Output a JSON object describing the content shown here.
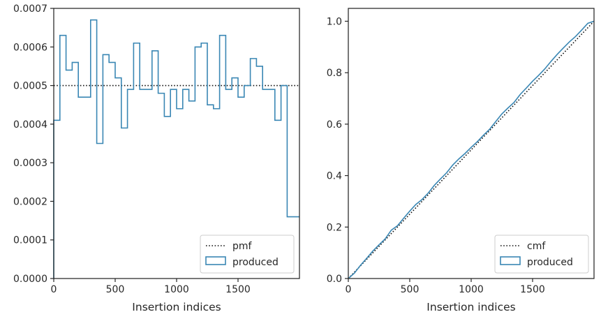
{
  "colors": {
    "produced": "#3a87b4",
    "reference": "#111111",
    "axes": "#262626",
    "legend_border": "#cccccc"
  },
  "chart_data": [
    {
      "type": "histogram-step",
      "title": "",
      "xlabel": "Insertion indices",
      "ylabel": "",
      "xlim": [
        0,
        2000
      ],
      "ylim": [
        0,
        0.0007
      ],
      "xticks": [
        0,
        500,
        1000,
        1500
      ],
      "xtick_labels": [
        "0",
        "500",
        "1000",
        "1500"
      ],
      "yticks": [
        0,
        0.0001,
        0.0002,
        0.0003,
        0.0004,
        0.0005,
        0.0006,
        0.0007
      ],
      "ytick_labels": [
        "0.0000",
        "0.0001",
        "0.0002",
        "0.0003",
        "0.0004",
        "0.0005",
        "0.0006",
        "0.0007"
      ],
      "legend_position": "lower-right",
      "reference": {
        "name": "pmf",
        "style": "dotted",
        "value": 0.0005
      },
      "series": [
        {
          "name": "produced",
          "style": "step",
          "bin_edges": [
            0,
            50,
            100,
            150,
            200,
            250,
            300,
            350,
            400,
            450,
            500,
            550,
            600,
            650,
            700,
            750,
            800,
            850,
            900,
            950,
            1000,
            1050,
            1100,
            1150,
            1200,
            1250,
            1300,
            1350,
            1400,
            1450,
            1500,
            1550,
            1600,
            1650,
            1700,
            1750,
            1800,
            1850,
            1900,
            1950,
            2000
          ],
          "values": [
            0.00041,
            0.00063,
            0.00054,
            0.00056,
            0.00047,
            0.00047,
            0.00067,
            0.00035,
            0.00058,
            0.00056,
            0.00052,
            0.00039,
            0.00049,
            0.00061,
            0.00049,
            0.00049,
            0.00059,
            0.00048,
            0.00042,
            0.00049,
            0.00044,
            0.00049,
            0.00046,
            0.0006,
            0.00061,
            0.00045,
            0.00044,
            0.00063,
            0.00049,
            0.00052,
            0.00047,
            0.0005,
            0.00057,
            0.00055,
            0.00049,
            0.00049,
            0.00041,
            0.0005,
            0.00016,
            0.00016
          ]
        }
      ]
    },
    {
      "type": "line-step",
      "title": "",
      "xlabel": "Insertion indices",
      "ylabel": "",
      "xlim": [
        0,
        2000
      ],
      "ylim": [
        0,
        1.05
      ],
      "xticks": [
        0,
        500,
        1000,
        1500
      ],
      "xtick_labels": [
        "0",
        "500",
        "1000",
        "1500"
      ],
      "yticks": [
        0,
        0.2,
        0.4,
        0.6,
        0.8,
        1.0
      ],
      "ytick_labels": [
        "0.0",
        "0.2",
        "0.4",
        "0.6",
        "0.8",
        "1.0"
      ],
      "legend_position": "lower-right",
      "reference": {
        "name": "cmf",
        "style": "dotted",
        "x": [
          0,
          2000
        ],
        "y": [
          0,
          1.0
        ]
      },
      "series": [
        {
          "name": "produced",
          "style": "step",
          "x": [
            0,
            50,
            100,
            150,
            200,
            250,
            300,
            350,
            400,
            450,
            500,
            550,
            600,
            650,
            700,
            750,
            800,
            850,
            900,
            950,
            1000,
            1050,
            1100,
            1150,
            1200,
            1250,
            1300,
            1350,
            1400,
            1450,
            1500,
            1550,
            1600,
            1650,
            1700,
            1750,
            1800,
            1850,
            1900,
            1950,
            2000
          ],
          "y": [
            0,
            0.021,
            0.052,
            0.079,
            0.107,
            0.131,
            0.154,
            0.188,
            0.205,
            0.234,
            0.262,
            0.288,
            0.307,
            0.332,
            0.362,
            0.387,
            0.411,
            0.441,
            0.465,
            0.486,
            0.51,
            0.532,
            0.557,
            0.58,
            0.61,
            0.64,
            0.663,
            0.685,
            0.716,
            0.741,
            0.767,
            0.79,
            0.815,
            0.844,
            0.871,
            0.896,
            0.92,
            0.941,
            0.966,
            0.992,
            1.0
          ]
        }
      ]
    }
  ]
}
